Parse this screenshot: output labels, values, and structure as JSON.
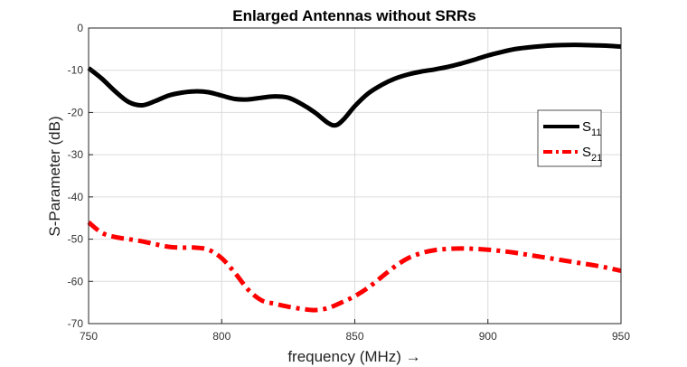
{
  "chart_data": {
    "type": "line",
    "title": "Enlarged Antennas without SRRs",
    "xlabel": "frequency (MHz) →",
    "ylabel": "S-Parameter (dB)",
    "xlim": [
      750,
      950
    ],
    "ylim": [
      -70,
      0
    ],
    "xticks": [
      750,
      800,
      850,
      900,
      950
    ],
    "yticks": [
      0,
      -10,
      -20,
      -30,
      -40,
      -50,
      -60,
      -70
    ],
    "grid": true,
    "legend_position": "right",
    "series": [
      {
        "name": "S11",
        "name_main": "S",
        "name_sub": "11",
        "color": "#000000",
        "line_style": "solid",
        "x": [
          750,
          755,
          760,
          765,
          770,
          775,
          780,
          785,
          790,
          795,
          800,
          805,
          810,
          815,
          820,
          825,
          830,
          835,
          840,
          843,
          846,
          850,
          855,
          860,
          865,
          870,
          875,
          880,
          885,
          890,
          895,
          900,
          905,
          910,
          915,
          920,
          925,
          930,
          935,
          940,
          945,
          950
        ],
        "y": [
          -9.5,
          -12,
          -15,
          -17.5,
          -18.3,
          -17.3,
          -16,
          -15.3,
          -15,
          -15.2,
          -16,
          -16.8,
          -16.9,
          -16.5,
          -16.2,
          -16.5,
          -18,
          -20,
          -22.5,
          -23,
          -21.5,
          -18.5,
          -15.5,
          -13.5,
          -12,
          -11,
          -10.3,
          -9.8,
          -9.2,
          -8.4,
          -7.5,
          -6.5,
          -5.7,
          -5,
          -4.6,
          -4.3,
          -4.1,
          -4,
          -4,
          -4.1,
          -4.2,
          -4.4
        ]
      },
      {
        "name": "S21",
        "name_main": "S",
        "name_sub": "21",
        "color": "#ff0000",
        "line_style": "dash-dot",
        "x": [
          750,
          755,
          760,
          765,
          770,
          775,
          780,
          785,
          790,
          795,
          800,
          805,
          810,
          815,
          820,
          825,
          830,
          835,
          840,
          845,
          850,
          855,
          860,
          865,
          870,
          875,
          880,
          885,
          890,
          895,
          900,
          905,
          910,
          915,
          920,
          925,
          930,
          935,
          940,
          945,
          950
        ],
        "y": [
          -46,
          -48.5,
          -49.5,
          -50,
          -50.5,
          -51.2,
          -51.8,
          -52,
          -52,
          -52.5,
          -54.5,
          -58,
          -62,
          -64.5,
          -65.3,
          -66,
          -66.5,
          -66.8,
          -66.3,
          -65,
          -63.5,
          -61.5,
          -59,
          -56.5,
          -54.5,
          -53.3,
          -52.6,
          -52.3,
          -52.2,
          -52.3,
          -52.5,
          -52.8,
          -53.2,
          -53.7,
          -54.2,
          -54.7,
          -55.2,
          -55.7,
          -56.2,
          -56.8,
          -57.5
        ]
      }
    ]
  }
}
